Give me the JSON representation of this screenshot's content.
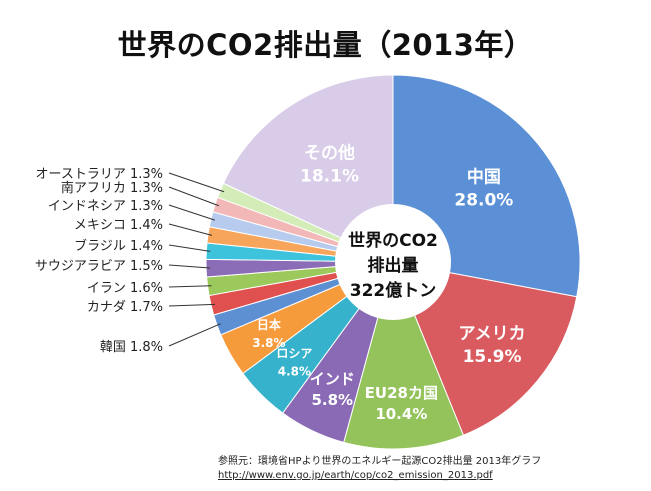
{
  "title": "世界のCO2排出量（2013年）",
  "chart_data": {
    "type": "pie",
    "title": "世界のCO2排出量（2013年）",
    "center_label": [
      "世界のCO2",
      "排出量",
      "322億トン"
    ],
    "unit": "%",
    "slices": [
      {
        "label": "中国",
        "value": 28.0,
        "value_text": "28.0%",
        "color": "#5b8fd6",
        "text_color": "#ffffff"
      },
      {
        "label": "アメリカ",
        "value": 15.9,
        "value_text": "15.9%",
        "color": "#d95a5f",
        "text_color": "#ffffff"
      },
      {
        "label": "EU28カ国",
        "value": 10.4,
        "value_text": "10.4%",
        "color": "#94c35b",
        "text_color": "#ffffff"
      },
      {
        "label": "インド",
        "value": 5.8,
        "value_text": "5.8%",
        "color": "#8a6ab5",
        "text_color": "#ffffff"
      },
      {
        "label": "ロシア",
        "value": 4.8,
        "value_text": "4.8%",
        "color": "#37b2cc",
        "text_color": "#ffffff"
      },
      {
        "label": "日本",
        "value": 3.8,
        "value_text": "3.8%",
        "color": "#f59b3c",
        "text_color": "#ffffff"
      },
      {
        "label": "韓国",
        "value": 1.8,
        "value_text": "1.8%",
        "color": "#5d8fd3",
        "text_color": "#222222"
      },
      {
        "label": "カナダ",
        "value": 1.7,
        "value_text": "1.7%",
        "color": "#e0504f",
        "text_color": "#222222"
      },
      {
        "label": "イラン",
        "value": 1.6,
        "value_text": "1.6%",
        "color": "#9cc95c",
        "text_color": "#222222"
      },
      {
        "label": "サウジアラビア",
        "value": 1.5,
        "value_text": "1.5%",
        "color": "#8b6cb6",
        "text_color": "#222222"
      },
      {
        "label": "ブラジル",
        "value": 1.4,
        "value_text": "1.4%",
        "color": "#3ec3dd",
        "text_color": "#222222"
      },
      {
        "label": "メキシコ",
        "value": 1.4,
        "value_text": "1.4%",
        "color": "#f7a55a",
        "text_color": "#222222"
      },
      {
        "label": "インドネシア",
        "value": 1.3,
        "value_text": "1.3%",
        "color": "#b7cbee",
        "text_color": "#222222"
      },
      {
        "label": "南アフリカ",
        "value": 1.3,
        "value_text": "1.3%",
        "color": "#f2b8b8",
        "text_color": "#222222"
      },
      {
        "label": "オーストラリア",
        "value": 1.3,
        "value_text": "1.3%",
        "color": "#d4ecb8",
        "text_color": "#222222"
      },
      {
        "label": "その他",
        "value": 18.1,
        "value_text": "18.1%",
        "color": "#d8cce9",
        "text_color": "#ffffff"
      }
    ],
    "legend": "none"
  },
  "source": {
    "line1": "参照元：環境省HPより世界のエネルギー起源CO2排出量 2013年グラフ",
    "url": "http://www.env.go.jp/earth/cop/co2_emission_2013.pdf"
  }
}
